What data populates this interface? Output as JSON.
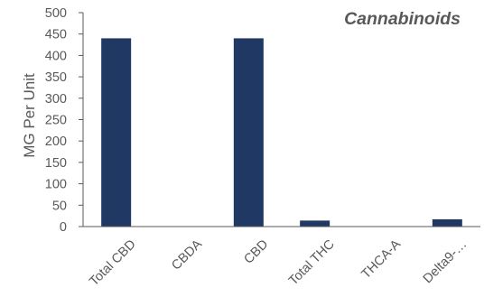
{
  "chart_data": {
    "type": "bar",
    "title": "Cannabinoids",
    "ylabel": "MG Per Unit",
    "xlabel": "",
    "categories": [
      "Total CBD",
      "CBDA",
      "CBD",
      "Total THC",
      "THCA-A",
      "Delta9-…"
    ],
    "values": [
      440,
      0,
      440,
      14,
      0,
      17
    ],
    "ylim": [
      0,
      500
    ],
    "yticks": [
      0,
      50,
      100,
      150,
      200,
      250,
      300,
      350,
      400,
      450,
      500
    ],
    "grid": false,
    "legend": "none",
    "bar_color": "#1f3864",
    "axis_color": "#595959"
  }
}
